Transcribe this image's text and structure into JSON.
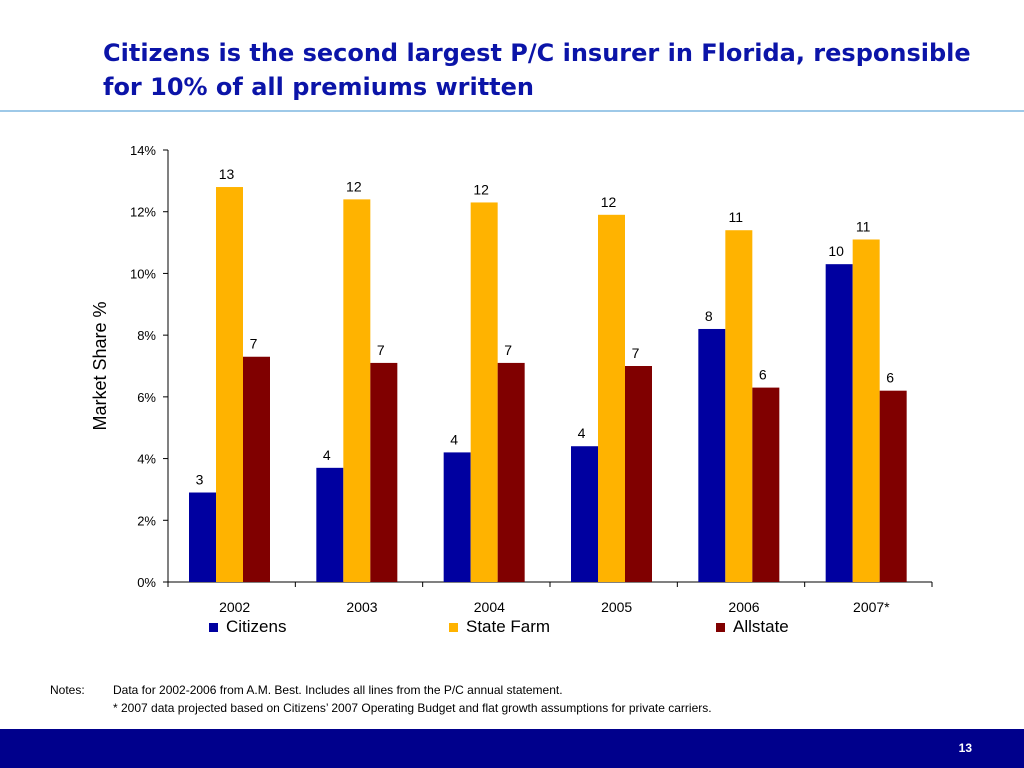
{
  "title": "Citizens is the second largest P/C insurer in Florida, responsible for 10% of all premiums written",
  "page_number": "13",
  "notes": {
    "label": "Notes:",
    "line1": "Data for 2002-2006 from A.M. Best. Includes all lines from the P/C annual statement.",
    "line2": "* 2007 data projected based on Citizens’ 2007 Operating Budget and flat growth assumptions for private carriers."
  },
  "chart_data": {
    "type": "bar",
    "ylabel": "Market Share %",
    "xlabel": "",
    "ylim": [
      0,
      14
    ],
    "yticks": [
      0,
      2,
      4,
      6,
      8,
      10,
      12,
      14
    ],
    "ytick_labels": [
      "0%",
      "2%",
      "4%",
      "6%",
      "8%",
      "10%",
      "12%",
      "14%"
    ],
    "categories": [
      "2002",
      "2003",
      "2004",
      "2005",
      "2006",
      "2007*"
    ],
    "legend_position": "bottom",
    "grid": false,
    "series": [
      {
        "name": "Citizens",
        "color": "#0000a0",
        "values": [
          2.9,
          3.7,
          4.2,
          4.4,
          8.2,
          10.3
        ],
        "labels": [
          "3",
          "4",
          "4",
          "4",
          "8",
          "10"
        ]
      },
      {
        "name": "State Farm",
        "color": "#ffb300",
        "values": [
          12.8,
          12.4,
          12.3,
          11.9,
          11.4,
          11.1
        ],
        "labels": [
          "13",
          "12",
          "12",
          "12",
          "11",
          "11"
        ]
      },
      {
        "name": "Allstate",
        "color": "#800000",
        "values": [
          7.3,
          7.1,
          7.1,
          7.0,
          6.3,
          6.2
        ],
        "labels": [
          "7",
          "7",
          "7",
          "7",
          "6",
          "6"
        ]
      }
    ]
  }
}
